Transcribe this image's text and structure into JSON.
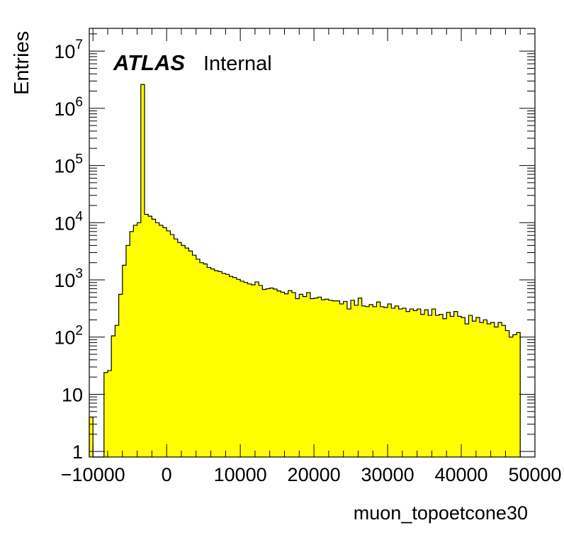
{
  "chart_data": {
    "type": "bar",
    "title": "",
    "xlabel": "muon_topoetcone30",
    "ylabel": "Entries",
    "xlim": [
      -10500,
      50000
    ],
    "ylim": [
      0.8,
      25000000
    ],
    "yscale": "log",
    "bin_width": 500,
    "bin_start": -10500,
    "fill_color": "#ffff00",
    "edge_color": "#000000",
    "annotations": {
      "experiment": "ATLAS",
      "status": "Internal"
    },
    "x_tick_labels": [
      "−10000",
      "0",
      "10000",
      "20000",
      "30000",
      "40000",
      "50000"
    ],
    "x_tick_values": [
      -10000,
      0,
      10000,
      20000,
      30000,
      40000,
      50000
    ],
    "y_tick_labels": [
      {
        "value": 1,
        "base": "1",
        "exp": ""
      },
      {
        "value": 10,
        "base": "10",
        "exp": ""
      },
      {
        "value": 100,
        "base": "10",
        "exp": "2"
      },
      {
        "value": 1000,
        "base": "10",
        "exp": "3"
      },
      {
        "value": 10000,
        "base": "10",
        "exp": "4"
      },
      {
        "value": 100000,
        "base": "10",
        "exp": "5"
      },
      {
        "value": 1000000,
        "base": "10",
        "exp": "6"
      },
      {
        "value": 10000000,
        "base": "10",
        "exp": "7"
      }
    ],
    "values": [
      4,
      0,
      0,
      0,
      24,
      26,
      105,
      160,
      560,
      1800,
      4000,
      7000,
      9000,
      10000,
      2600000,
      14000,
      13000,
      11500,
      10000,
      9000,
      8200,
      7200,
      6200,
      5200,
      4500,
      4000,
      3600,
      3200,
      2700,
      2300,
      2000,
      1900,
      1650,
      1550,
      1450,
      1400,
      1300,
      1250,
      1150,
      1100,
      1020,
      950,
      900,
      850,
      820,
      920,
      800,
      680,
      700,
      720,
      690,
      640,
      610,
      570,
      650,
      600,
      470,
      560,
      510,
      600,
      470,
      480,
      500,
      450,
      460,
      440,
      430,
      430,
      380,
      420,
      310,
      440,
      360,
      480,
      350,
      340,
      370,
      340,
      410,
      340,
      330,
      380,
      320,
      350,
      310,
      320,
      280,
      310,
      290,
      310,
      250,
      300,
      240,
      310,
      240,
      250,
      210,
      270,
      230,
      280,
      230,
      220,
      170,
      240,
      190,
      220,
      180,
      200,
      170,
      180,
      150,
      180,
      160,
      130,
      100,
      110,
      120
    ]
  }
}
